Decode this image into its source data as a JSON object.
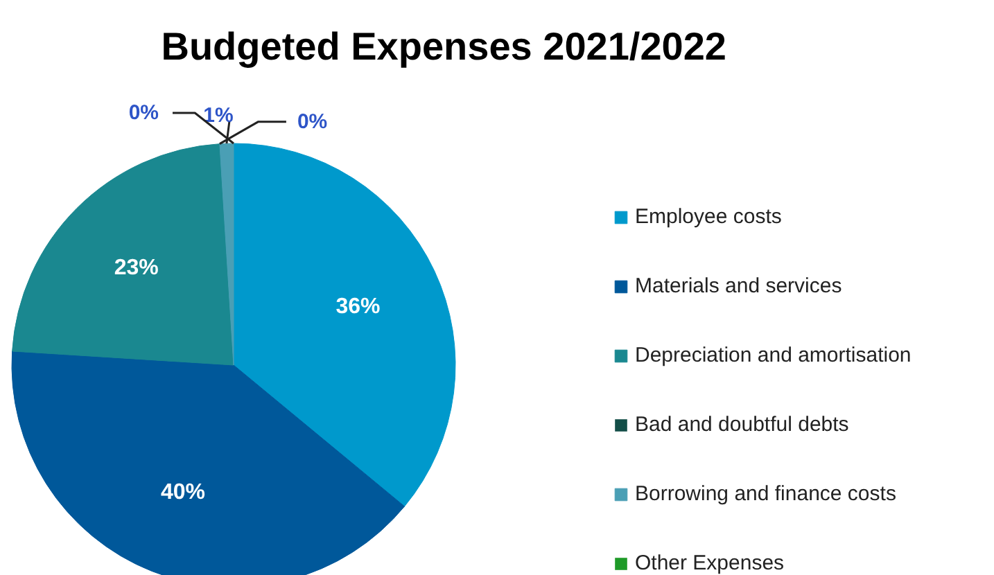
{
  "chart_data": {
    "type": "pie",
    "title": "Budgeted  Expenses 2021/2022",
    "categories": [
      "Employee costs",
      "Materials and services",
      "Depreciation and amortisation",
      "Bad and doubtful debts",
      "Borrowing and finance costs",
      "Other Expenses"
    ],
    "values": [
      36,
      40,
      23,
      0,
      1,
      0
    ],
    "colors": [
      "#0099cc",
      "#00589a",
      "#1a8890",
      "#134e48",
      "#4a9fb5",
      "#1e9a28"
    ],
    "value_labels": [
      "36%",
      "40%",
      "23%",
      "0%",
      "1%",
      "0%"
    ],
    "legend": "right"
  }
}
